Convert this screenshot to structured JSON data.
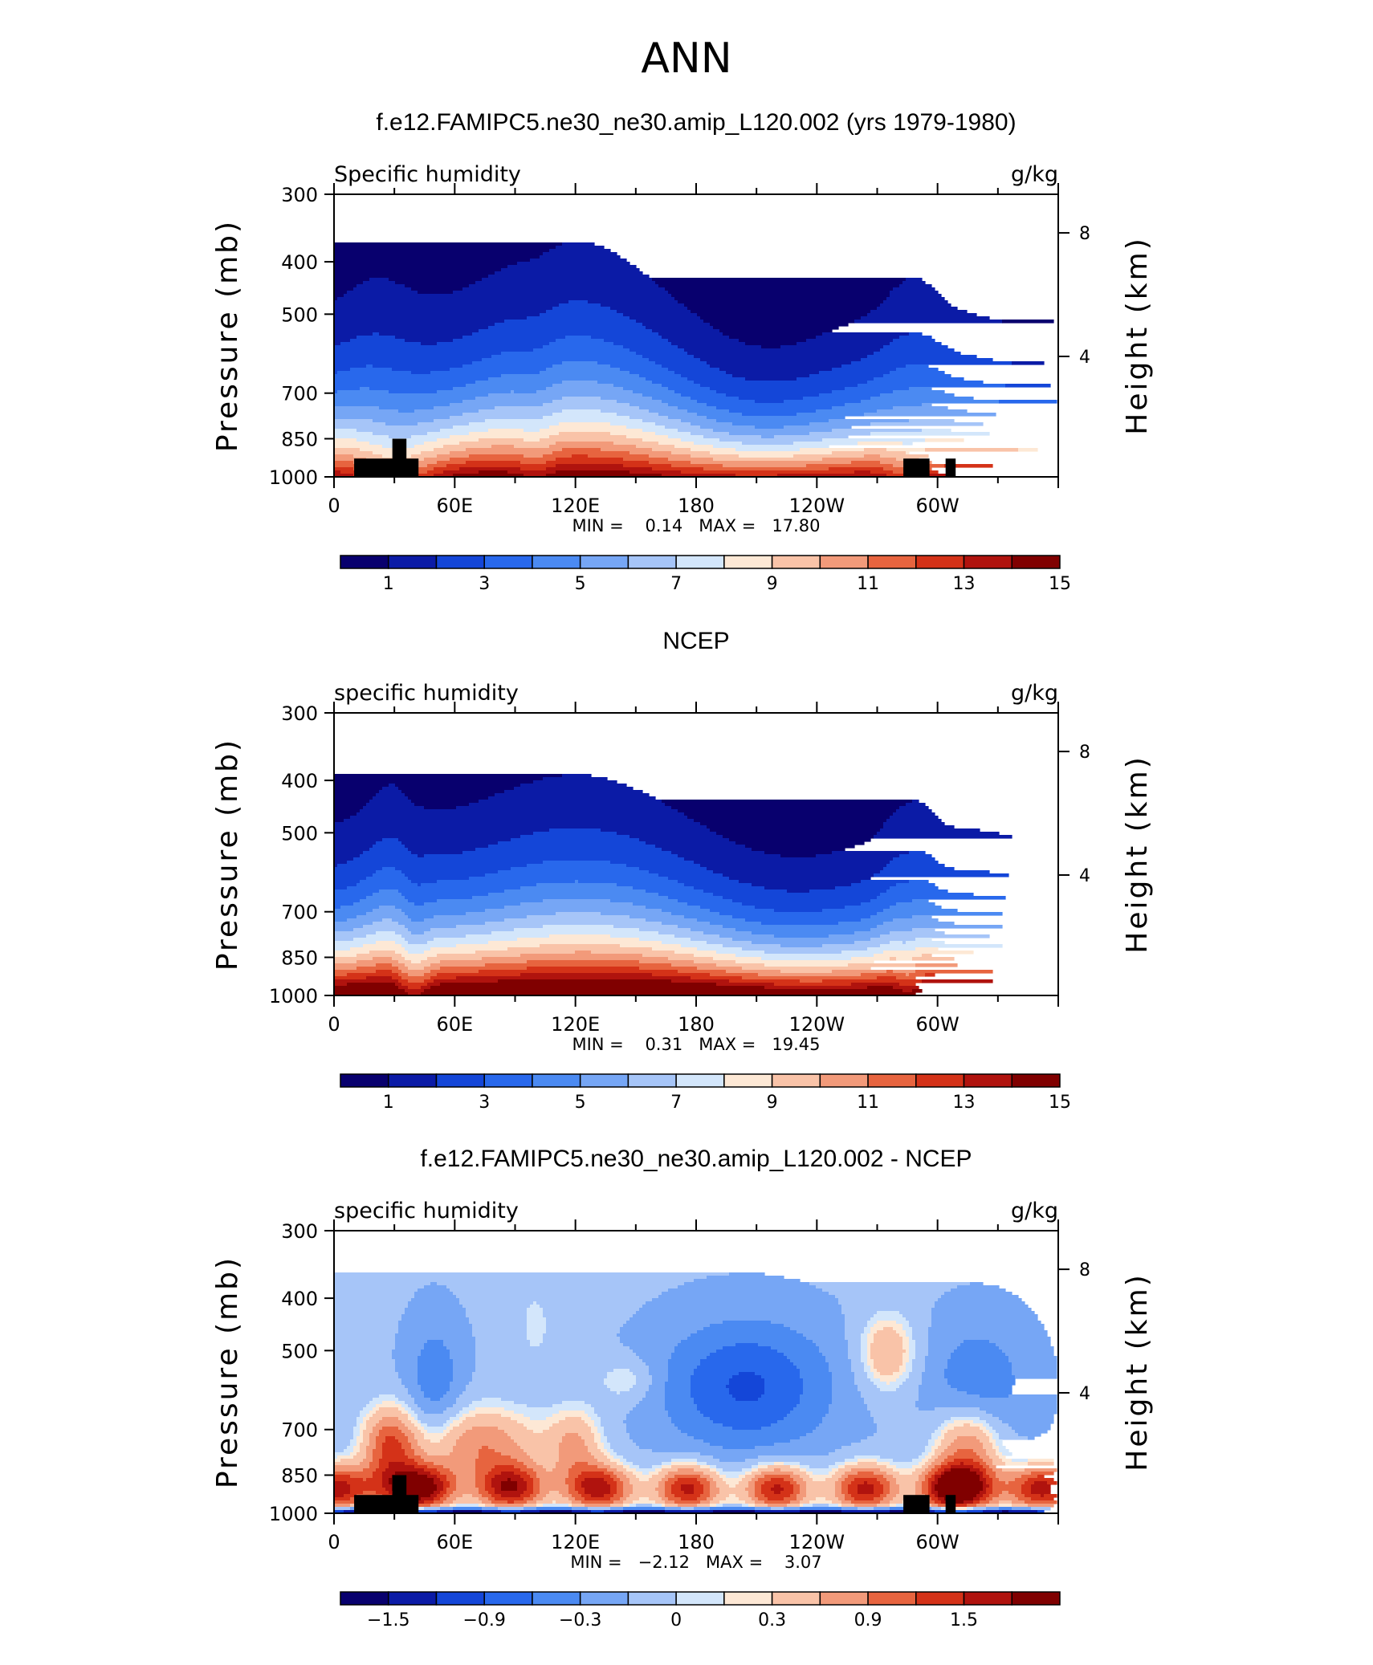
{
  "figure": {
    "title": "ANN"
  },
  "colors": {
    "abs_palette": [
      "#08006e",
      "#0b1ba6",
      "#1446d8",
      "#2868ec",
      "#4b8af2",
      "#76a6f5",
      "#a6c5f8",
      "#d3e6fb",
      "#fde8d5",
      "#f9c3a8",
      "#f29a7a",
      "#e7643f",
      "#d43218",
      "#b0130e",
      "#800000"
    ],
    "diff_palette": [
      "#08006e",
      "#0b1ba6",
      "#1446d8",
      "#2868ec",
      "#4b8af2",
      "#76a6f5",
      "#a6c5f8",
      "#d3e6fb",
      "#fde8d5",
      "#f9c3a8",
      "#f29a7a",
      "#e7643f",
      "#d43218",
      "#b0130e",
      "#800000"
    ]
  },
  "chart_data": [
    {
      "type": "heatmap",
      "title": "f.e12.FAMIPC5.ne30_ne30.amip_L120.002 (yrs 1979-1980)",
      "left_label": "Specific humidity",
      "right_label": "g/kg",
      "ylabel": "Pressure (mb)",
      "ylabel_right": "Height (km)",
      "yticks": [
        "300",
        "400",
        "500",
        "700",
        "850",
        "1000"
      ],
      "ytick_values": [
        300,
        400,
        500,
        700,
        850,
        1000
      ],
      "yticks_right": [
        "8",
        "4"
      ],
      "ytick_right_values": [
        8,
        4
      ],
      "xticks": [
        "0",
        "60E",
        "120E",
        "180",
        "120W",
        "60W"
      ],
      "xtick_values": [
        0,
        60,
        120,
        180,
        240,
        300
      ],
      "xlim": [
        0,
        360
      ],
      "ylim": [
        1000,
        300
      ],
      "stats_text": "MIN =    0.14   MAX =   17.80",
      "colorbar_labels": [
        "1",
        "3",
        "5",
        "7",
        "9",
        "11",
        "13",
        "15"
      ],
      "field": "model",
      "topography": true
    },
    {
      "type": "heatmap",
      "title": "NCEP",
      "left_label": "specific humidity",
      "right_label": "g/kg",
      "ylabel": "Pressure (mb)",
      "ylabel_right": "Height (km)",
      "yticks": [
        "300",
        "400",
        "500",
        "700",
        "850",
        "1000"
      ],
      "ytick_values": [
        300,
        400,
        500,
        700,
        850,
        1000
      ],
      "yticks_right": [
        "8",
        "4"
      ],
      "ytick_right_values": [
        8,
        4
      ],
      "xticks": [
        "0",
        "60E",
        "120E",
        "180",
        "120W",
        "60W"
      ],
      "xtick_values": [
        0,
        60,
        120,
        180,
        240,
        300
      ],
      "xlim": [
        0,
        360
      ],
      "ylim": [
        1000,
        300
      ],
      "stats_text": "MIN =    0.31   MAX =   19.45",
      "colorbar_labels": [
        "1",
        "3",
        "5",
        "7",
        "9",
        "11",
        "13",
        "15"
      ],
      "field": "obs",
      "topography": false
    },
    {
      "type": "heatmap",
      "title": "f.e12.FAMIPC5.ne30_ne30.amip_L120.002 - NCEP",
      "left_label": "specific humidity",
      "right_label": "g/kg",
      "ylabel": "Pressure (mb)",
      "ylabel_right": "Height (km)",
      "yticks": [
        "300",
        "400",
        "500",
        "700",
        "850",
        "1000"
      ],
      "ytick_values": [
        300,
        400,
        500,
        700,
        850,
        1000
      ],
      "yticks_right": [
        "8",
        "4"
      ],
      "ytick_right_values": [
        8,
        4
      ],
      "xticks": [
        "0",
        "60E",
        "120E",
        "180",
        "120W",
        "60W"
      ],
      "xtick_values": [
        0,
        60,
        120,
        180,
        240,
        300
      ],
      "xlim": [
        0,
        360
      ],
      "ylim": [
        1000,
        300
      ],
      "stats_text": "MIN =   −2.12   MAX =    3.07",
      "colorbar_labels": [
        "−1.5",
        "−0.9",
        "−0.3",
        "0",
        "0.3",
        "0.9",
        "1.5"
      ],
      "field": "diff",
      "topography": true
    }
  ],
  "topography_blocks": [
    {
      "lon_from": 10,
      "lon_to": 42,
      "p_top": 925
    },
    {
      "lon_from": 29,
      "lon_to": 36,
      "p_top": 850
    },
    {
      "lon_from": 283,
      "lon_to": 296,
      "p_top": 925
    },
    {
      "lon_from": 304,
      "lon_to": 309,
      "p_top": 925
    }
  ]
}
